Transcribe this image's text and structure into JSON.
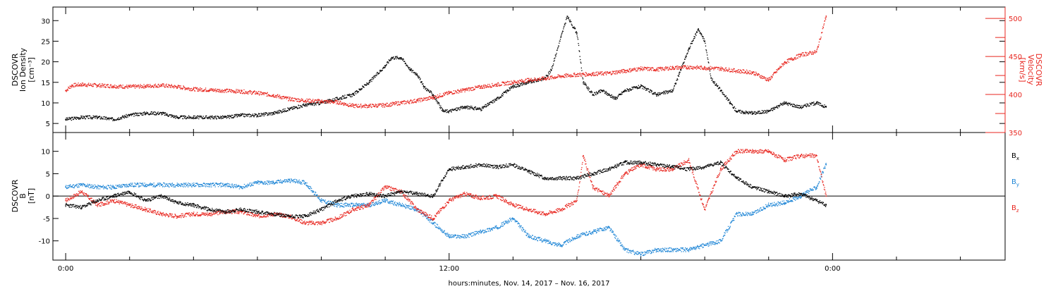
{
  "colors": {
    "axis": "#000000",
    "density": "#000000",
    "velocity": "#e8261f",
    "bx": "#000000",
    "by": "#1f86d6",
    "bz": "#e8261f"
  },
  "x_axis": {
    "label": "hours:minutes, Nov. 14, 2017 – Nov. 16, 2017",
    "unit": "hours since Nov. 14, 2017 00:00",
    "range": [
      -0.4,
      29.4
    ],
    "labeled_ticks": [
      {
        "value": 0,
        "label": "0:00"
      },
      {
        "value": 12,
        "label": "12:00"
      },
      {
        "value": 24,
        "label": "0:00"
      }
    ],
    "minor_tick_step": 2
  },
  "panel_top": {
    "left_axis": {
      "label_lines": [
        "DSCOVR",
        "Ion Density",
        "[cm⁻³]"
      ],
      "range": [
        2.8,
        33.3
      ],
      "ticks": [
        5,
        10,
        15,
        20,
        25,
        30
      ]
    },
    "right_axis": {
      "label_lines": [
        "DSCOVR",
        "Velocity",
        "[km/s]"
      ],
      "range": [
        350,
        515
      ],
      "ticks": [
        350,
        400,
        450,
        500
      ],
      "minor_ticks": [
        375,
        425,
        475
      ]
    }
  },
  "panel_bottom": {
    "left_axis": {
      "label_lines": [
        "DSCOVR",
        "B",
        "[nT]"
      ],
      "range": [
        -14.3,
        14.2
      ],
      "ticks": [
        -10,
        -5,
        0,
        5,
        10
      ]
    },
    "legend": [
      {
        "symbol": "B",
        "sub": "x",
        "color_key": "bx"
      },
      {
        "symbol": "B",
        "sub": "y",
        "color_key": "by"
      },
      {
        "symbol": "B",
        "sub": "z",
        "color_key": "bz"
      }
    ]
  },
  "chart_data": [
    {
      "type": "scatter",
      "panel": "top",
      "title": "",
      "xlabel": "hours:minutes, Nov. 14, 2017 – Nov. 16, 2017",
      "ylabel": "DSCOVR Ion Density [cm⁻³]",
      "ylim": [
        2.8,
        33.3
      ],
      "series": [
        {
          "name": "Ion Density",
          "axis": "left",
          "color_key": "density",
          "x": [
            0,
            0.5,
            1,
            1.5,
            2,
            2.5,
            3,
            3.5,
            4,
            4.5,
            5,
            5.5,
            6,
            6.5,
            7,
            7.5,
            8,
            8.5,
            9,
            9.5,
            10,
            10.2,
            10.5,
            10.8,
            11,
            11.2,
            11.5,
            11.8,
            12,
            12.5,
            13,
            13.5,
            14,
            14.5,
            15,
            15.2,
            15.5,
            15.7,
            16,
            16.2,
            16.5,
            16.8,
            17,
            17.2,
            17.5,
            18,
            18.5,
            19,
            19.2,
            19.5,
            19.8,
            20,
            20.2,
            20.5,
            20.8,
            21,
            21.5,
            22,
            22.5,
            23,
            23.5,
            23.8
          ],
          "y": [
            6,
            6.5,
            6.5,
            6,
            7,
            7.5,
            7.5,
            6.5,
            6.5,
            6.5,
            6.5,
            7,
            7,
            7.5,
            8.5,
            9.5,
            10,
            11,
            12,
            15,
            19,
            21,
            21,
            18,
            17,
            14,
            12,
            8,
            8,
            9,
            8.5,
            11,
            14,
            15,
            16,
            18,
            26,
            31,
            27,
            15,
            12,
            13,
            12,
            11,
            13,
            14,
            12,
            13,
            17,
            23,
            28,
            25,
            16,
            13,
            10,
            8,
            7.5,
            8,
            10,
            9,
            10,
            9
          ]
        },
        {
          "name": "Velocity",
          "axis": "right",
          "color_key": "velocity",
          "x": [
            0,
            0.2,
            0.5,
            1,
            1.5,
            2,
            2.5,
            3,
            3.5,
            4,
            4.5,
            5,
            5.5,
            6,
            6.5,
            7,
            7.5,
            8,
            8.5,
            9,
            9.5,
            10,
            10.5,
            11,
            11.5,
            12,
            12.5,
            13,
            13.5,
            14,
            14.5,
            15,
            15.5,
            16,
            16.5,
            17,
            17.5,
            18,
            18.5,
            19,
            19.5,
            20,
            20.5,
            21,
            21.5,
            22,
            22.5,
            23,
            23.5,
            23.8
          ],
          "y": [
            405,
            412,
            413,
            412,
            411,
            410,
            411,
            412,
            410,
            407,
            406,
            405,
            404,
            402,
            399,
            394,
            392,
            391,
            390,
            385,
            385,
            386,
            389,
            392,
            396,
            402,
            406,
            410,
            413,
            416,
            419,
            421,
            424,
            426,
            427,
            428,
            431,
            434,
            433,
            435,
            436,
            435,
            434,
            431,
            429,
            419,
            442,
            452,
            456,
            503
          ]
        }
      ]
    },
    {
      "type": "scatter",
      "panel": "top-right-axis",
      "ylabel": "DSCOVR Velocity [km/s]",
      "ylim": [
        350,
        515
      ]
    },
    {
      "type": "scatter",
      "panel": "bottom",
      "title": "",
      "xlabel": "hours:minutes, Nov. 14, 2017 – Nov. 16, 2017",
      "ylabel": "DSCOVR B [nT]",
      "ylim": [
        -14.3,
        14.2
      ],
      "series": [
        {
          "name": "Bx",
          "color_key": "bx",
          "x": [
            0,
            0.5,
            1,
            1.5,
            2,
            2.5,
            3,
            3.5,
            4,
            4.5,
            5,
            5.5,
            6,
            6.5,
            7,
            7.5,
            8,
            8.5,
            9,
            9.5,
            10,
            10.5,
            11,
            11.5,
            12,
            12.5,
            13,
            13.5,
            14,
            14.5,
            15,
            15.5,
            16,
            16.5,
            17,
            17.5,
            18,
            18.5,
            19,
            19.5,
            20,
            20.5,
            21,
            21.5,
            22,
            22.5,
            23,
            23.5,
            23.8
          ],
          "y": [
            -2,
            -2.5,
            -1,
            0,
            1,
            -1,
            0,
            -1.5,
            -2,
            -3,
            -3.5,
            -3,
            -3.5,
            -4,
            -4.5,
            -4.5,
            -3,
            -1,
            0,
            0.5,
            0,
            1,
            0.5,
            0,
            6,
            6.5,
            7,
            6.5,
            7,
            5.5,
            4,
            4,
            4,
            5,
            6,
            7.5,
            7.5,
            7,
            6.5,
            6,
            6.5,
            7.5,
            4,
            2,
            1,
            0,
            0.5,
            -1,
            -2
          ]
        },
        {
          "name": "By",
          "color_key": "by",
          "x": [
            0,
            0.5,
            1,
            1.5,
            2,
            2.5,
            3,
            3.5,
            4,
            4.5,
            5,
            5.5,
            6,
            6.5,
            7,
            7.5,
            8,
            8.5,
            9,
            9.5,
            10,
            10.5,
            11,
            11.5,
            12,
            12.5,
            13,
            13.5,
            14,
            14.5,
            15,
            15.5,
            16,
            16.5,
            17,
            17.5,
            18,
            18.5,
            19,
            19.5,
            20,
            20.5,
            21,
            21.5,
            22,
            22.5,
            23,
            23.5,
            23.8
          ],
          "y": [
            2,
            2.5,
            2,
            2,
            2.5,
            2.5,
            2.5,
            2.5,
            2.5,
            2.5,
            2.5,
            2,
            3,
            3,
            3.5,
            3,
            -1,
            -2,
            -2,
            -2,
            -1,
            -2,
            -3,
            -6,
            -9,
            -9,
            -8,
            -7,
            -5,
            -9,
            -10,
            -11,
            -9,
            -8,
            -7,
            -12,
            -13,
            -12,
            -12,
            -12,
            -11,
            -10,
            -4,
            -4,
            -2,
            -1.5,
            0,
            2,
            7
          ]
        },
        {
          "name": "Bz",
          "color_key": "bz",
          "x": [
            0,
            0.5,
            1,
            1.5,
            2,
            2.5,
            3,
            3.5,
            4,
            4.5,
            5,
            5.5,
            6,
            6.5,
            7,
            7.5,
            8,
            8.5,
            9,
            9.5,
            10,
            10.5,
            11,
            11.5,
            12,
            12.5,
            13,
            13.5,
            14,
            14.5,
            15,
            15.5,
            16,
            16.2,
            16.5,
            17,
            17.5,
            18,
            18.5,
            19,
            19.5,
            20,
            20.5,
            21,
            21.5,
            22,
            22.5,
            23,
            23.5,
            23.8
          ],
          "y": [
            -1,
            1,
            -2,
            -1,
            -2,
            -3,
            -4,
            -4.5,
            -4,
            -4,
            -3.5,
            -3.5,
            -4.5,
            -4,
            -4.5,
            -6,
            -6,
            -5,
            -3,
            -2,
            2,
            1,
            -3,
            -5,
            -1,
            0.5,
            -0.5,
            0,
            -2,
            -3,
            -4,
            -3,
            -1,
            9,
            2,
            0,
            5,
            7,
            6,
            6,
            8,
            -3,
            6,
            10,
            10,
            10,
            8,
            9,
            9,
            0
          ]
        }
      ]
    }
  ]
}
